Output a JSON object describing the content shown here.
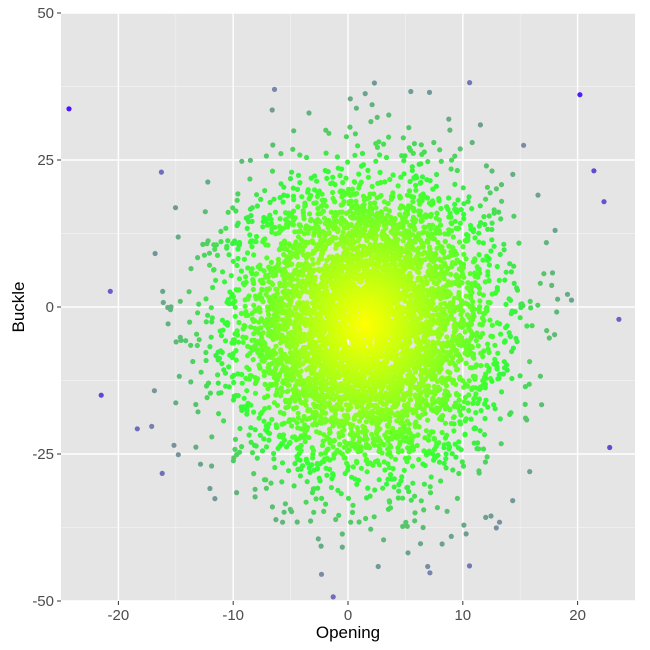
{
  "chart_data": {
    "type": "scatter",
    "title": "",
    "xlabel": "Opening",
    "ylabel": "Buckle",
    "xlim": [
      -25,
      25
    ],
    "ylim": [
      -50,
      50
    ],
    "x_ticks": [
      -20,
      -10,
      0,
      10,
      20
    ],
    "x_tick_labels": [
      "-20",
      "-10",
      "0",
      "10",
      "20"
    ],
    "y_ticks": [
      -50,
      -25,
      0,
      25,
      50
    ],
    "y_tick_labels": [
      "-50",
      "-25",
      "0",
      "25",
      "50"
    ],
    "grid": true,
    "legend": "none",
    "color_scale": {
      "description": "points colored by distance from center",
      "center_color": "#ffff00",
      "mid_color": "#33ff33",
      "outer_color": "#7a8aa6",
      "extreme_color": "#4b14ff"
    },
    "point_distribution": {
      "approximate_count": 6000,
      "x_mean": 1.5,
      "x_sd": 5.5,
      "y_mean": -3,
      "y_sd": 12
    },
    "outliers": [
      {
        "x": -24.3,
        "y": 33.7
      },
      {
        "x": -21.5,
        "y": -15
      },
      {
        "x": -6.4,
        "y": 37
      },
      {
        "x": -6.6,
        "y": 33.5
      },
      {
        "x": 2.3,
        "y": 38.1
      },
      {
        "x": 7.1,
        "y": 36.5
      },
      {
        "x": 20.2,
        "y": 36.1
      },
      {
        "x": 1.5,
        "y": 36.3
      },
      {
        "x": 0.2,
        "y": 35.4
      },
      {
        "x": 2.1,
        "y": 34.4
      },
      {
        "x": 8.2,
        "y": -40.3
      },
      {
        "x": 3.1,
        "y": -39.6
      },
      {
        "x": -0.5,
        "y": -38.6
      },
      {
        "x": -5.7,
        "y": -36.6
      },
      {
        "x": 13.2,
        "y": -36.6
      },
      {
        "x": 10.1,
        "y": -37.1
      },
      {
        "x": -17.1,
        "y": -20.3
      },
      {
        "x": 23.6,
        "y": -2.1
      },
      {
        "x": 22.3,
        "y": 17.9
      },
      {
        "x": 15.3,
        "y": 27.5
      },
      {
        "x": -16.8,
        "y": 9.1
      },
      {
        "x": -15.0,
        "y": -16.3
      },
      {
        "x": 22.8,
        "y": -23.9
      }
    ]
  }
}
